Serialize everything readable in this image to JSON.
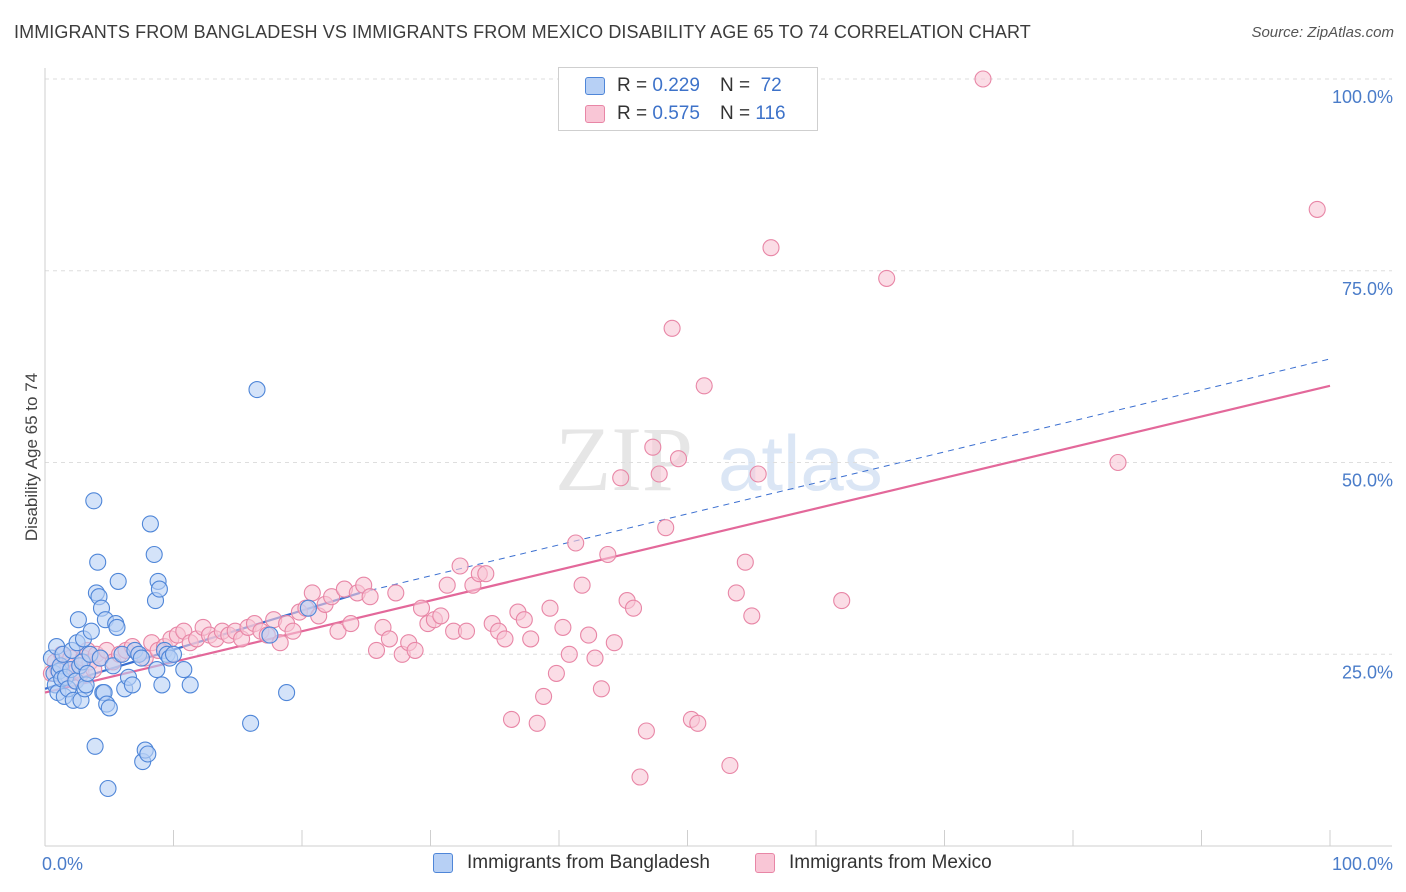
{
  "title": "IMMIGRANTS FROM BANGLADESH VS IMMIGRANTS FROM MEXICO DISABILITY AGE 65 TO 74 CORRELATION CHART",
  "source": "Source: ZipAtlas.com",
  "watermark": {
    "zip": "ZIP",
    "atlas": "atlas"
  },
  "legend": [
    {
      "r_label": "R =",
      "r_value": "0.229",
      "n_label": "N =",
      "n_value": "72"
    },
    {
      "r_label": "R =",
      "r_value": "0.575",
      "n_label": "N =",
      "n_value": "116"
    }
  ],
  "colors": {
    "bangladesh_fill": "#b7d0f5",
    "bangladesh_stroke": "#4f86d8",
    "bangladesh_line": "#3b6fd0",
    "mexico_fill": "#f9c6d6",
    "mexico_stroke": "#e886a6",
    "mexico_line": "#e3689a",
    "grid": "#dedede",
    "tick_text": "#4a7cc9"
  },
  "chart_data": {
    "type": "scatter",
    "title": "IMMIGRANTS FROM BANGLADESH VS IMMIGRANTS FROM MEXICO DISABILITY AGE 65 TO 74 CORRELATION CHART",
    "xlabel": "",
    "ylabel": "Disability Age 65 to 74",
    "xlim": [
      0,
      100
    ],
    "ylim": [
      0,
      102
    ],
    "x_tick_labels": [
      "0.0%",
      "100.0%"
    ],
    "y_ticks": [
      25,
      50,
      75,
      100
    ],
    "y_tick_labels": [
      "25.0%",
      "50.0%",
      "75.0%",
      "100.0%"
    ],
    "grid": true,
    "legend_position": "bottom-center",
    "series": [
      {
        "name": "Immigrants from Bangladesh",
        "R": 0.229,
        "N": 72,
        "trend": {
          "x0": 0,
          "y0": 20.5,
          "x1": 24.5,
          "y1": 33.0,
          "extended_to_x": 100,
          "extended_y": 63.5
        },
        "points": [
          [
            0.5,
            24.5
          ],
          [
            0.7,
            22.5
          ],
          [
            0.8,
            21.0
          ],
          [
            0.9,
            26.0
          ],
          [
            1.0,
            20.0
          ],
          [
            1.1,
            22.8
          ],
          [
            1.2,
            23.5
          ],
          [
            1.3,
            21.8
          ],
          [
            1.4,
            25.0
          ],
          [
            1.5,
            19.5
          ],
          [
            1.6,
            22.0
          ],
          [
            1.8,
            20.5
          ],
          [
            2.0,
            23.0
          ],
          [
            2.1,
            25.5
          ],
          [
            2.2,
            19.0
          ],
          [
            2.4,
            21.5
          ],
          [
            2.5,
            26.5
          ],
          [
            2.6,
            29.5
          ],
          [
            2.7,
            23.5
          ],
          [
            2.8,
            19.0
          ],
          [
            2.9,
            24.0
          ],
          [
            3.0,
            27.0
          ],
          [
            3.1,
            20.5
          ],
          [
            3.2,
            21.0
          ],
          [
            3.3,
            22.5
          ],
          [
            3.5,
            25.0
          ],
          [
            3.6,
            28.0
          ],
          [
            3.8,
            45.0
          ],
          [
            3.9,
            13.0
          ],
          [
            4.0,
            33.0
          ],
          [
            4.1,
            37.0
          ],
          [
            4.2,
            32.5
          ],
          [
            4.3,
            24.5
          ],
          [
            4.4,
            31.0
          ],
          [
            4.5,
            20.0
          ],
          [
            4.6,
            20.0
          ],
          [
            4.7,
            29.5
          ],
          [
            4.8,
            18.5
          ],
          [
            4.9,
            7.5
          ],
          [
            5.0,
            18.0
          ],
          [
            5.3,
            23.5
          ],
          [
            5.5,
            29.0
          ],
          [
            5.6,
            28.5
          ],
          [
            5.7,
            34.5
          ],
          [
            6.0,
            25.0
          ],
          [
            6.2,
            20.5
          ],
          [
            6.5,
            22.0
          ],
          [
            6.8,
            21.0
          ],
          [
            7.0,
            25.5
          ],
          [
            7.3,
            25.0
          ],
          [
            7.5,
            24.5
          ],
          [
            7.6,
            11.0
          ],
          [
            7.8,
            12.5
          ],
          [
            8.0,
            12.0
          ],
          [
            8.2,
            42.0
          ],
          [
            8.5,
            38.0
          ],
          [
            8.6,
            32.0
          ],
          [
            8.7,
            23.0
          ],
          [
            8.8,
            34.5
          ],
          [
            8.9,
            33.5
          ],
          [
            9.1,
            21.0
          ],
          [
            9.3,
            25.5
          ],
          [
            9.5,
            25.0
          ],
          [
            9.7,
            24.5
          ],
          [
            10.0,
            25.0
          ],
          [
            10.8,
            23.0
          ],
          [
            11.3,
            21.0
          ],
          [
            16.0,
            16.0
          ],
          [
            16.5,
            59.5
          ],
          [
            17.5,
            27.5
          ],
          [
            18.8,
            20.0
          ],
          [
            20.5,
            31.0
          ]
        ]
      },
      {
        "name": "Immigrants from Mexico",
        "R": 0.575,
        "N": 116,
        "trend": {
          "x0": 0,
          "y0": 20.0,
          "x1": 100,
          "y1": 60.0
        },
        "points": [
          [
            0.5,
            22.5
          ],
          [
            0.8,
            24.0
          ],
          [
            1.0,
            23.0
          ],
          [
            1.3,
            25.0
          ],
          [
            1.5,
            22.0
          ],
          [
            1.8,
            23.5
          ],
          [
            2.0,
            24.5
          ],
          [
            2.3,
            21.5
          ],
          [
            2.5,
            23.0
          ],
          [
            2.8,
            22.5
          ],
          [
            3.0,
            24.5
          ],
          [
            3.3,
            25.5
          ],
          [
            3.5,
            24.0
          ],
          [
            3.8,
            23.0
          ],
          [
            4.0,
            25.0
          ],
          [
            4.3,
            24.5
          ],
          [
            4.8,
            25.5
          ],
          [
            5.3,
            24.0
          ],
          [
            5.8,
            25.0
          ],
          [
            6.3,
            25.5
          ],
          [
            6.8,
            26.0
          ],
          [
            7.3,
            25.0
          ],
          [
            7.8,
            24.5
          ],
          [
            8.3,
            26.5
          ],
          [
            8.8,
            25.5
          ],
          [
            9.3,
            26.0
          ],
          [
            9.8,
            27.0
          ],
          [
            10.3,
            27.5
          ],
          [
            10.8,
            28.0
          ],
          [
            11.3,
            26.5
          ],
          [
            11.8,
            27.0
          ],
          [
            12.3,
            28.5
          ],
          [
            12.8,
            27.5
          ],
          [
            13.3,
            27.0
          ],
          [
            13.8,
            28.0
          ],
          [
            14.3,
            27.5
          ],
          [
            14.8,
            28.0
          ],
          [
            15.3,
            27.0
          ],
          [
            15.8,
            28.5
          ],
          [
            16.3,
            29.0
          ],
          [
            16.8,
            28.0
          ],
          [
            17.3,
            27.5
          ],
          [
            17.8,
            29.5
          ],
          [
            18.3,
            26.5
          ],
          [
            18.8,
            29.0
          ],
          [
            19.3,
            28.0
          ],
          [
            19.8,
            30.5
          ],
          [
            20.3,
            31.0
          ],
          [
            20.8,
            33.0
          ],
          [
            21.3,
            30.0
          ],
          [
            21.8,
            31.5
          ],
          [
            22.3,
            32.5
          ],
          [
            22.8,
            28.0
          ],
          [
            23.3,
            33.5
          ],
          [
            23.8,
            29.0
          ],
          [
            24.3,
            33.0
          ],
          [
            24.8,
            34.0
          ],
          [
            25.3,
            32.5
          ],
          [
            25.8,
            25.5
          ],
          [
            26.3,
            28.5
          ],
          [
            26.8,
            27.0
          ],
          [
            27.3,
            33.0
          ],
          [
            27.8,
            25.0
          ],
          [
            28.3,
            26.5
          ],
          [
            28.8,
            25.5
          ],
          [
            29.3,
            31.0
          ],
          [
            29.8,
            29.0
          ],
          [
            30.3,
            29.5
          ],
          [
            30.8,
            30.0
          ],
          [
            31.3,
            34.0
          ],
          [
            31.8,
            28.0
          ],
          [
            32.3,
            36.5
          ],
          [
            32.8,
            28.0
          ],
          [
            33.3,
            34.0
          ],
          [
            33.8,
            35.5
          ],
          [
            34.3,
            35.5
          ],
          [
            34.8,
            29.0
          ],
          [
            35.3,
            28.0
          ],
          [
            35.8,
            27.0
          ],
          [
            36.3,
            16.5
          ],
          [
            36.8,
            30.5
          ],
          [
            37.3,
            29.5
          ],
          [
            37.8,
            27.0
          ],
          [
            38.3,
            16.0
          ],
          [
            38.8,
            19.5
          ],
          [
            39.3,
            31.0
          ],
          [
            39.8,
            22.5
          ],
          [
            40.3,
            28.5
          ],
          [
            40.8,
            25.0
          ],
          [
            41.3,
            39.5
          ],
          [
            41.8,
            34.0
          ],
          [
            42.3,
            27.5
          ],
          [
            42.8,
            24.5
          ],
          [
            43.3,
            20.5
          ],
          [
            43.8,
            38.0
          ],
          [
            44.3,
            26.5
          ],
          [
            44.8,
            48.0
          ],
          [
            45.3,
            32.0
          ],
          [
            45.8,
            31.0
          ],
          [
            46.3,
            9.0
          ],
          [
            46.8,
            15.0
          ],
          [
            47.3,
            52.0
          ],
          [
            47.8,
            48.5
          ],
          [
            48.3,
            41.5
          ],
          [
            48.8,
            67.5
          ],
          [
            49.3,
            50.5
          ],
          [
            50.3,
            16.5
          ],
          [
            50.8,
            16.0
          ],
          [
            51.3,
            60.0
          ],
          [
            53.3,
            10.5
          ],
          [
            53.8,
            33.0
          ],
          [
            54.5,
            37.0
          ],
          [
            55.0,
            30.0
          ],
          [
            55.5,
            48.5
          ],
          [
            56.5,
            78.0
          ],
          [
            62.0,
            32.0
          ],
          [
            65.5,
            74.0
          ],
          [
            73.0,
            100.0
          ],
          [
            83.5,
            50.0
          ],
          [
            99.0,
            83.0
          ]
        ]
      }
    ]
  },
  "bottom_legend": [
    "Immigrants from Bangladesh",
    "Immigrants from Mexico"
  ]
}
